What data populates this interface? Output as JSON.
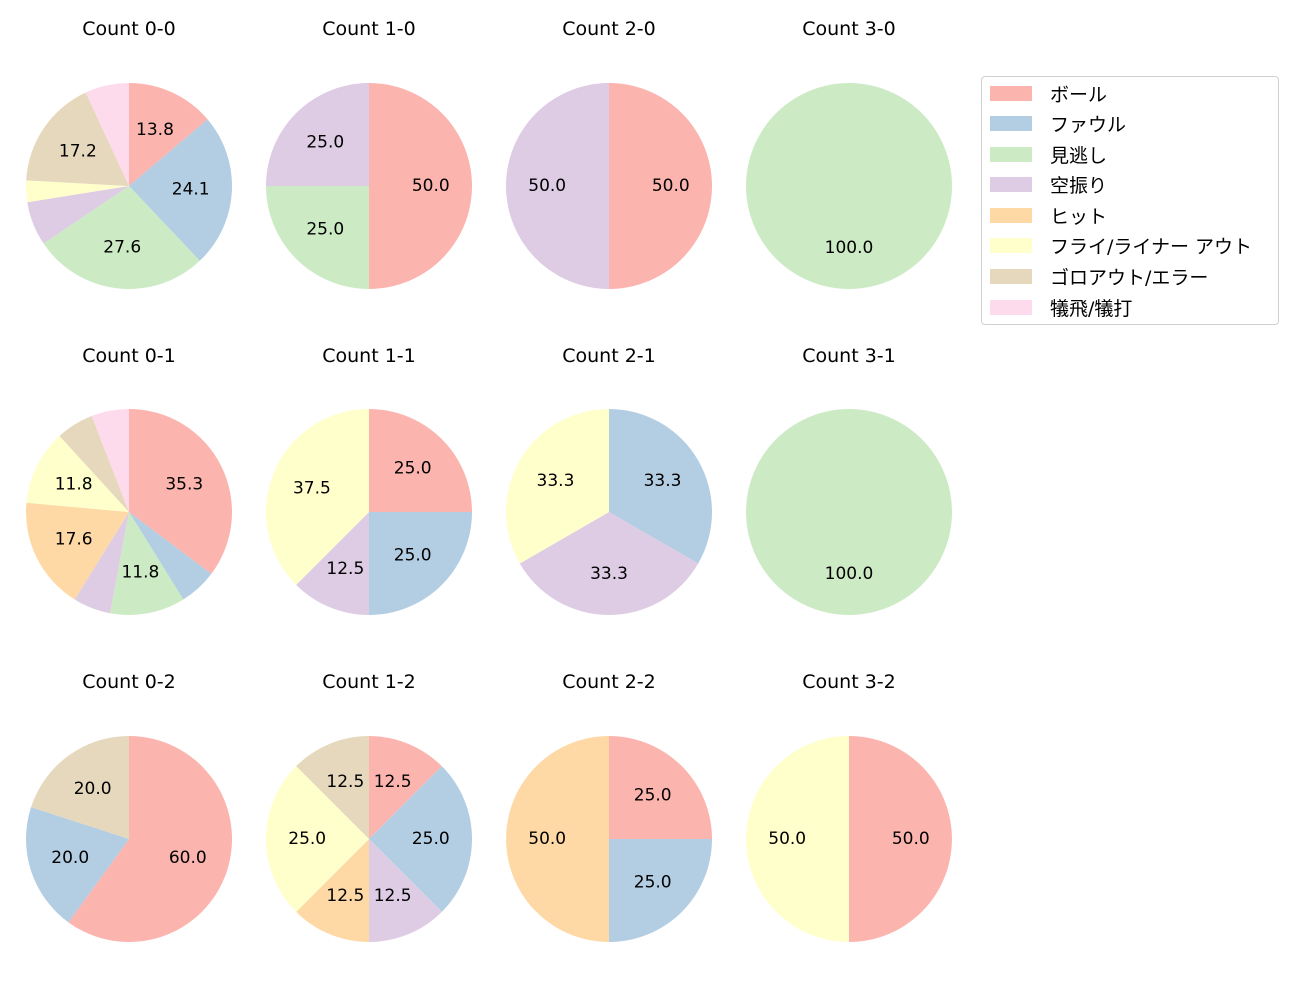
{
  "chart_data": {
    "type": "pie",
    "layout": {
      "rows": 3,
      "cols": 4,
      "legend_position": "upper right"
    },
    "categories": [
      "ボール",
      "ファウル",
      "見逃し",
      "空振り",
      "ヒット",
      "フライ/ライナー アウト",
      "ゴロアウト/エラー",
      "犠飛/犠打"
    ],
    "colors": [
      "#fbb4ae",
      "#b3cde3",
      "#ccebc5",
      "#decbe4",
      "#fed9a6",
      "#ffffcc",
      "#e5d8bd",
      "#fddaec"
    ],
    "charts": [
      {
        "title": "Count 0-0",
        "values": [
          13.8,
          24.1,
          27.6,
          6.9,
          0,
          3.4,
          17.2,
          6.9
        ],
        "labels": [
          "13.8",
          "24.1",
          "27.6",
          "",
          "",
          "",
          "17.2",
          ""
        ]
      },
      {
        "title": "Count 1-0",
        "values": [
          50.0,
          0,
          25.0,
          25.0,
          0,
          0,
          0,
          0
        ],
        "labels": [
          "50.0",
          "",
          "25.0",
          "25.0",
          "",
          "",
          "",
          ""
        ]
      },
      {
        "title": "Count 2-0",
        "values": [
          50.0,
          0,
          0,
          50.0,
          0,
          0,
          0,
          0
        ],
        "labels": [
          "50.0",
          "",
          "",
          "50.0",
          "",
          "",
          "",
          ""
        ]
      },
      {
        "title": "Count 3-0",
        "values": [
          0,
          0,
          100.0,
          0,
          0,
          0,
          0,
          0
        ],
        "labels": [
          "",
          "",
          "100.0",
          "",
          "",
          "",
          "",
          ""
        ]
      },
      {
        "title": "Count 0-1",
        "values": [
          35.3,
          5.9,
          11.8,
          5.9,
          17.6,
          11.8,
          5.9,
          5.9
        ],
        "labels": [
          "35.3",
          "",
          "11.8",
          "",
          "17.6",
          "11.8",
          "",
          ""
        ]
      },
      {
        "title": "Count 1-1",
        "values": [
          25.0,
          25.0,
          0,
          12.5,
          0,
          37.5,
          0,
          0
        ],
        "labels": [
          "25.0",
          "25.0",
          "",
          "12.5",
          "",
          "37.5",
          "",
          ""
        ]
      },
      {
        "title": "Count 2-1",
        "values": [
          0,
          33.3,
          0,
          33.3,
          0,
          33.3,
          0,
          0
        ],
        "labels": [
          "",
          "33.3",
          "",
          "33.3",
          "",
          "33.3",
          "",
          ""
        ]
      },
      {
        "title": "Count 3-1",
        "values": [
          0,
          0,
          100.0,
          0,
          0,
          0,
          0,
          0
        ],
        "labels": [
          "",
          "",
          "100.0",
          "",
          "",
          "",
          "",
          ""
        ]
      },
      {
        "title": "Count 0-2",
        "values": [
          60.0,
          20.0,
          0,
          0,
          0,
          0,
          20.0,
          0
        ],
        "labels": [
          "60.0",
          "20.0",
          "",
          "",
          "",
          "",
          "20.0",
          ""
        ]
      },
      {
        "title": "Count 1-2",
        "values": [
          12.5,
          25.0,
          0,
          12.5,
          12.5,
          25.0,
          12.5,
          0
        ],
        "labels": [
          "12.5",
          "25.0",
          "",
          "12.5",
          "12.5",
          "25.0",
          "12.5",
          ""
        ]
      },
      {
        "title": "Count 2-2",
        "values": [
          25.0,
          25.0,
          0,
          0,
          50.0,
          0,
          0,
          0
        ],
        "labels": [
          "25.0",
          "25.0",
          "",
          "",
          "50.0",
          "",
          "",
          ""
        ]
      },
      {
        "title": "Count 3-2",
        "values": [
          50.0,
          0,
          0,
          0,
          0,
          50.0,
          0,
          0
        ],
        "labels": [
          "50.0",
          "",
          "",
          "",
          "",
          "50.0",
          "",
          ""
        ]
      }
    ]
  },
  "legend": {
    "items": [
      {
        "label": "ボール",
        "color": "#fbb4ae"
      },
      {
        "label": "ファウル",
        "color": "#b3cde3"
      },
      {
        "label": "見逃し",
        "color": "#ccebc5"
      },
      {
        "label": "空振り",
        "color": "#decbe4"
      },
      {
        "label": "ヒット",
        "color": "#fed9a6"
      },
      {
        "label": "フライ/ライナー アウト",
        "color": "#ffffcc"
      },
      {
        "label": "ゴロアウト/エラー",
        "color": "#e5d8bd"
      },
      {
        "label": "犠飛/犠打",
        "color": "#fddaec"
      }
    ]
  }
}
